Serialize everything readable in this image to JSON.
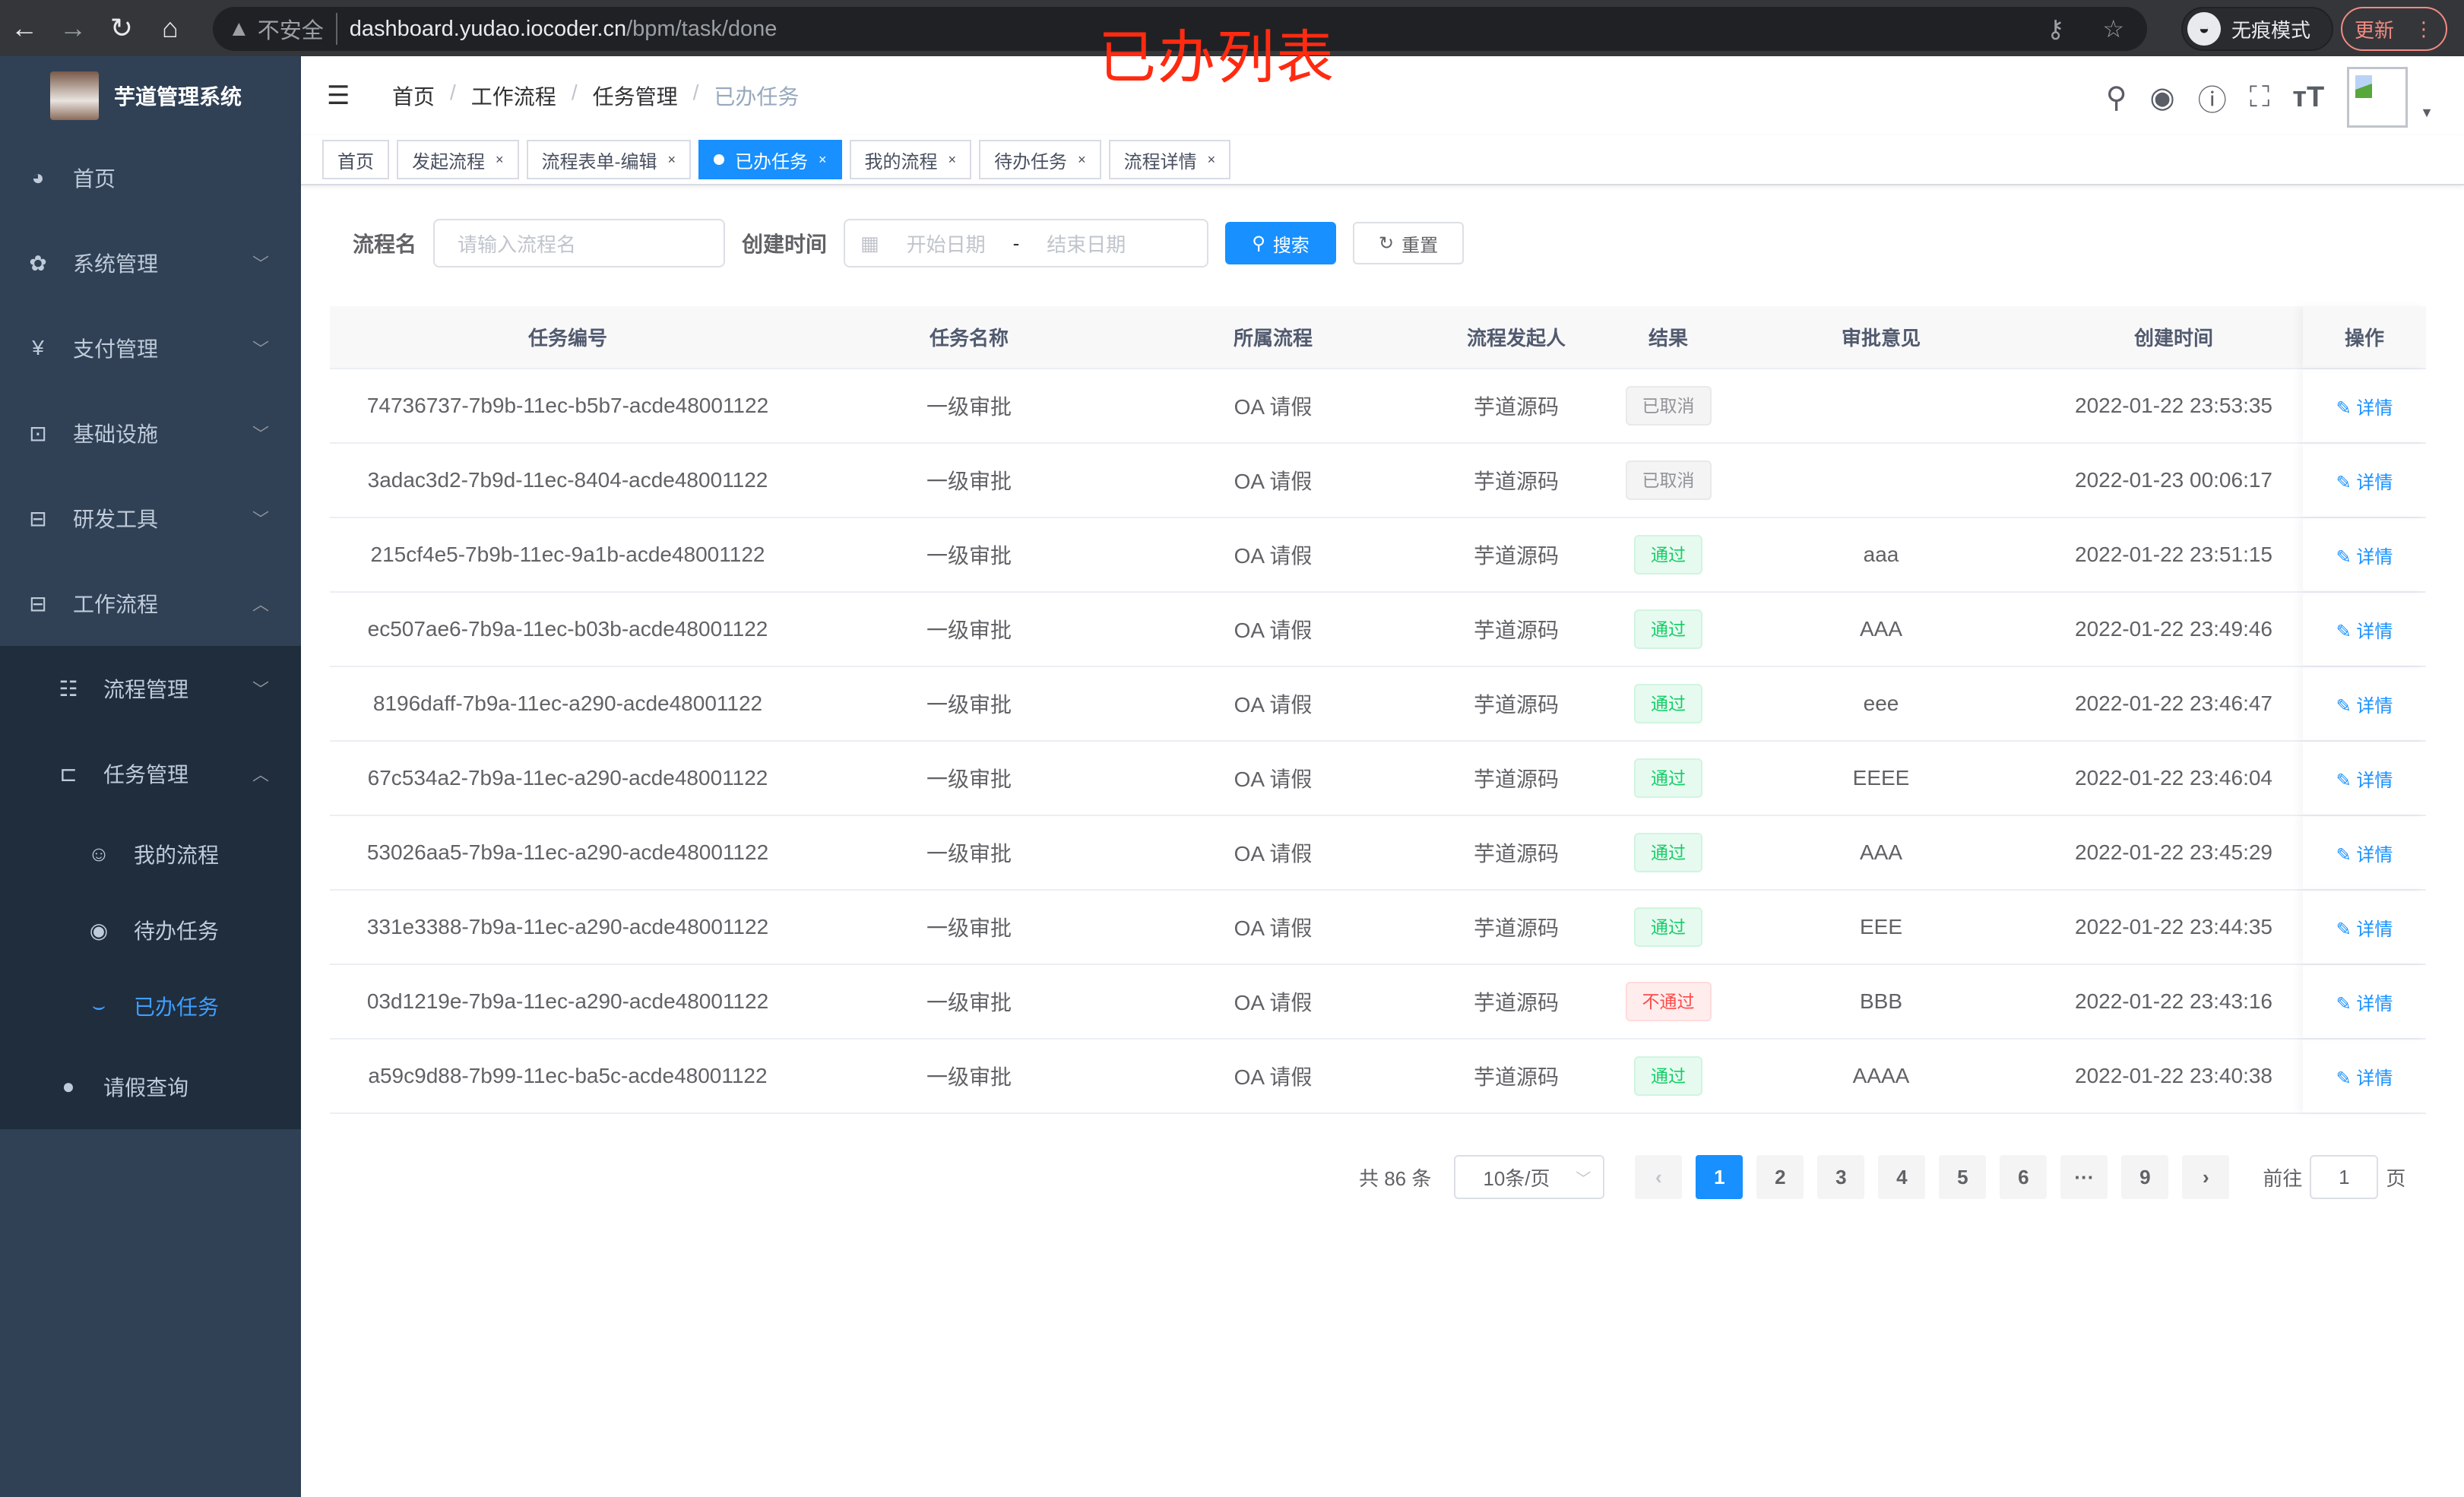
{
  "browser": {
    "insecure": "不安全",
    "host": "dashboard.yudao.iocoder.cn",
    "path": "/bpm/task/done",
    "incognito": "无痕模式",
    "update": "更新"
  },
  "overlay_title": "已办列表",
  "app": {
    "title": "芋道管理系统"
  },
  "sidebar": {
    "items": [
      {
        "label": "首页",
        "icon": "dashboard-icon",
        "chev": ""
      },
      {
        "label": "系统管理",
        "icon": "gear-icon",
        "chev": "﹀"
      },
      {
        "label": "支付管理",
        "icon": "yen-icon",
        "chev": "﹀"
      },
      {
        "label": "基础设施",
        "icon": "monitor-icon",
        "chev": "﹀"
      },
      {
        "label": "研发工具",
        "icon": "toolbox-icon",
        "chev": "﹀"
      },
      {
        "label": "工作流程",
        "icon": "toolbox-icon",
        "chev": "︿"
      }
    ],
    "sub": [
      {
        "label": "流程管理",
        "icon": "list-icon",
        "chev": "﹀"
      },
      {
        "label": "任务管理",
        "icon": "task-icon",
        "chev": "︿"
      }
    ],
    "sub2": [
      {
        "label": "我的流程",
        "icon": "face-icon"
      },
      {
        "label": "待办任务",
        "icon": "eye-icon"
      },
      {
        "label": "已办任务",
        "icon": "eye-closed-icon"
      }
    ],
    "leave": {
      "label": "请假查询",
      "icon": "user-icon"
    }
  },
  "breadcrumb": [
    "首页",
    "工作流程",
    "任务管理",
    "已办任务"
  ],
  "tags": [
    {
      "label": "首页",
      "closable": false
    },
    {
      "label": "发起流程",
      "closable": true
    },
    {
      "label": "流程表单-编辑",
      "closable": true
    },
    {
      "label": "已办任务",
      "closable": true,
      "active": true
    },
    {
      "label": "我的流程",
      "closable": true
    },
    {
      "label": "待办任务",
      "closable": true
    },
    {
      "label": "流程详情",
      "closable": true
    }
  ],
  "search": {
    "name_label": "流程名",
    "name_placeholder": "请输入流程名",
    "time_label": "创建时间",
    "start_placeholder": "开始日期",
    "sep": "-",
    "end_placeholder": "结束日期",
    "search_btn": "搜索",
    "reset_btn": "重置"
  },
  "table": {
    "headers": [
      "任务编号",
      "任务名称",
      "所属流程",
      "流程发起人",
      "结果",
      "审批意见",
      "创建时间",
      "操作"
    ],
    "rows": [
      [
        "74736737-7b9b-11ec-b5b7-acde48001122",
        "一级审批",
        "OA 请假",
        "芋道源码",
        "已取消",
        "",
        "2022-01-22 23:53:35"
      ],
      [
        "3adac3d2-7b9d-11ec-8404-acde48001122",
        "一级审批",
        "OA 请假",
        "芋道源码",
        "已取消",
        "",
        "2022-01-23 00:06:17"
      ],
      [
        "215cf4e5-7b9b-11ec-9a1b-acde48001122",
        "一级审批",
        "OA 请假",
        "芋道源码",
        "通过",
        "aaa",
        "2022-01-22 23:51:15"
      ],
      [
        "ec507ae6-7b9a-11ec-b03b-acde48001122",
        "一级审批",
        "OA 请假",
        "芋道源码",
        "通过",
        "AAA",
        "2022-01-22 23:49:46"
      ],
      [
        "8196daff-7b9a-11ec-a290-acde48001122",
        "一级审批",
        "OA 请假",
        "芋道源码",
        "通过",
        "eee",
        "2022-01-22 23:46:47"
      ],
      [
        "67c534a2-7b9a-11ec-a290-acde48001122",
        "一级审批",
        "OA 请假",
        "芋道源码",
        "通过",
        "EEEE",
        "2022-01-22 23:46:04"
      ],
      [
        "53026aa5-7b9a-11ec-a290-acde48001122",
        "一级审批",
        "OA 请假",
        "芋道源码",
        "通过",
        "AAA",
        "2022-01-22 23:45:29"
      ],
      [
        "331e3388-7b9a-11ec-a290-acde48001122",
        "一级审批",
        "OA 请假",
        "芋道源码",
        "通过",
        "EEE",
        "2022-01-22 23:44:35"
      ],
      [
        "03d1219e-7b9a-11ec-a290-acde48001122",
        "一级审批",
        "OA 请假",
        "芋道源码",
        "不通过",
        "BBB",
        "2022-01-22 23:43:16"
      ],
      [
        "a59c9d88-7b99-11ec-ba5c-acde48001122",
        "一级审批",
        "OA 请假",
        "芋道源码",
        "通过",
        "AAAA",
        "2022-01-22 23:40:38"
      ]
    ],
    "action": "详情"
  },
  "status_colors": {
    "已取消": [
      "#909399",
      "#f4f4f5",
      "#e9e9eb"
    ],
    "通过": [
      "#13ce66",
      "#e7faf0",
      "#d0f5e0"
    ],
    "不通过": [
      "#ff4949",
      "#ffeded",
      "#ffdbdb"
    ]
  },
  "pagination": {
    "total": "共 86 条",
    "page_size": "10条/页",
    "pages": [
      "1",
      "2",
      "3",
      "4",
      "5",
      "6",
      "···",
      "9"
    ],
    "current": "1",
    "goto_label": "前往",
    "goto_value": "1",
    "page_suffix": "页"
  }
}
